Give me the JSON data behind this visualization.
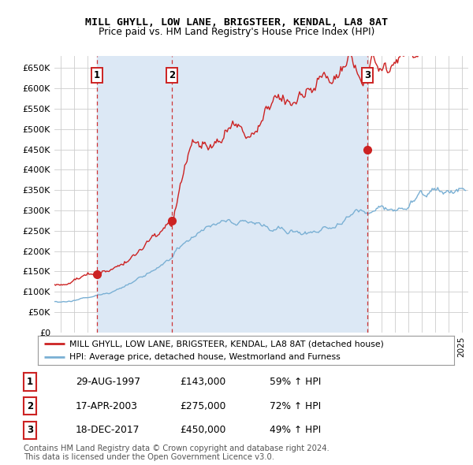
{
  "title": "MILL GHYLL, LOW LANE, BRIGSTEER, KENDAL, LA8 8AT",
  "subtitle": "Price paid vs. HM Land Registry's House Price Index (HPI)",
  "ylabel_ticks": [
    "£0",
    "£50K",
    "£100K",
    "£150K",
    "£200K",
    "£250K",
    "£300K",
    "£350K",
    "£400K",
    "£450K",
    "£500K",
    "£550K",
    "£600K",
    "£650K"
  ],
  "ytick_values": [
    0,
    50000,
    100000,
    150000,
    200000,
    250000,
    300000,
    350000,
    400000,
    450000,
    500000,
    550000,
    600000,
    650000
  ],
  "xlim_start": 1994.5,
  "xlim_end": 2025.5,
  "ylim_min": 0,
  "ylim_max": 680000,
  "sale_dates": [
    1997.66,
    2003.29,
    2017.97
  ],
  "sale_prices": [
    143000,
    275000,
    450000
  ],
  "sale_labels": [
    "1",
    "2",
    "3"
  ],
  "shade_color": "#dce8f5",
  "legend_entries": [
    "MILL GHYLL, LOW LANE, BRIGSTEER, KENDAL, LA8 8AT (detached house)",
    "HPI: Average price, detached house, Westmorland and Furness"
  ],
  "table_rows": [
    [
      "1",
      "29-AUG-1997",
      "£143,000",
      "59% ↑ HPI"
    ],
    [
      "2",
      "17-APR-2003",
      "£275,000",
      "72% ↑ HPI"
    ],
    [
      "3",
      "18-DEC-2017",
      "£450,000",
      "49% ↑ HPI"
    ]
  ],
  "footnote": "Contains HM Land Registry data © Crown copyright and database right 2024.\nThis data is licensed under the Open Government Licence v3.0.",
  "property_color": "#cc2222",
  "hpi_color": "#7ab0d4",
  "background_color": "#ffffff",
  "grid_color": "#cccccc"
}
